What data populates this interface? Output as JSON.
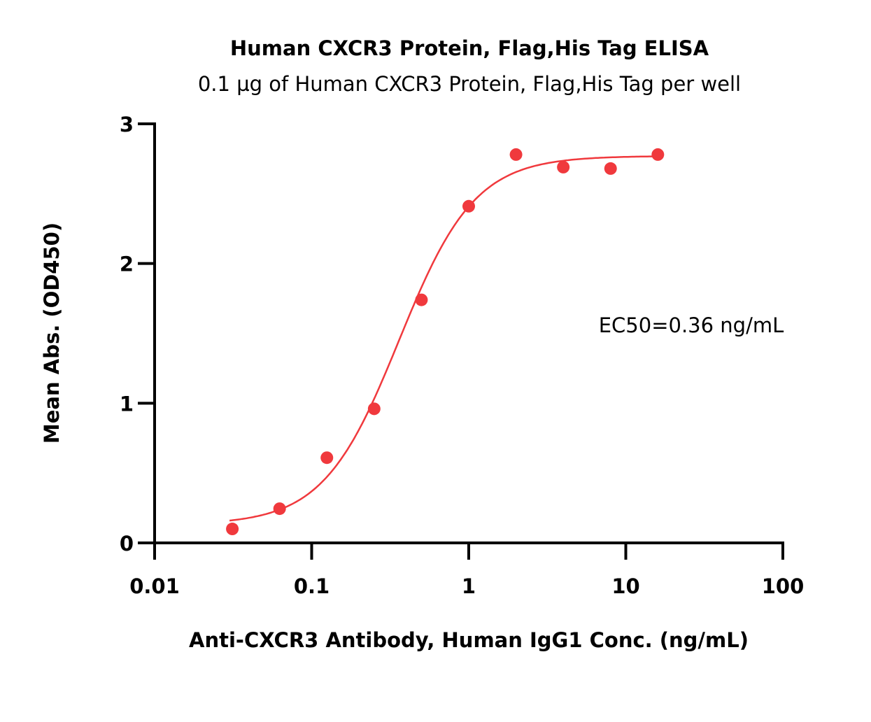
{
  "chart_data": {
    "type": "scatter",
    "title": "Human CXCR3 Protein, Flag,His Tag ELISA",
    "subtitle": "0.1 µg of Human CXCR3 Protein, Flag,His Tag per well",
    "xlabel": "Anti-CXCR3 Antibody, Human IgG1 Conc. (ng/mL)",
    "ylabel": "Mean Abs. (OD450)",
    "xscale": "log",
    "xlim": [
      0.01,
      100
    ],
    "ylim": [
      0,
      3
    ],
    "xticks": [
      "0.01",
      "0.1",
      "1",
      "10",
      "100"
    ],
    "xtick_values": [
      0.01,
      0.1,
      1,
      10,
      100
    ],
    "yticks": [
      "0",
      "1",
      "2",
      "3"
    ],
    "ytick_values": [
      0,
      1,
      2,
      3
    ],
    "annotation": "EC50=0.36 ng/mL",
    "color": "#f0393d",
    "series": [
      {
        "name": "Anti-CXCR3 Antibody",
        "x": [
          0.03125,
          0.0625,
          0.125,
          0.25,
          0.5,
          1,
          2,
          4,
          8,
          16
        ],
        "y": [
          0.1,
          0.245,
          0.61,
          0.96,
          1.74,
          2.41,
          2.78,
          2.69,
          2.68,
          2.78
        ]
      }
    ],
    "fit": {
      "model": "4PL",
      "bottom": 0.13,
      "top": 2.77,
      "ec50": 0.36,
      "hill": 1.8,
      "x_range": [
        0.03,
        16
      ]
    }
  }
}
